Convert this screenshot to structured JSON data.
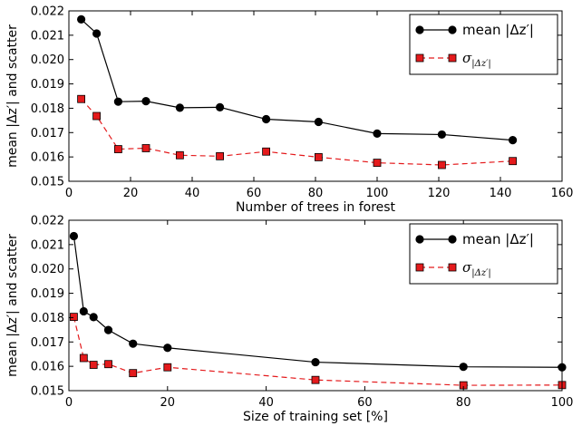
{
  "chart_data": [
    {
      "type": "line",
      "xlabel": "Number of trees in forest",
      "ylabel": "mean |Δz′| and scatter",
      "xlim": [
        0,
        160
      ],
      "ylim": [
        0.015,
        0.022
      ],
      "xticks": [
        "0",
        "20",
        "40",
        "60",
        "80",
        "100",
        "120",
        "140",
        "160"
      ],
      "yticks": [
        "0.015",
        "0.016",
        "0.017",
        "0.018",
        "0.019",
        "0.020",
        "0.021",
        "0.022"
      ],
      "grid": false,
      "legend_position": "top-right",
      "x": [
        4,
        9,
        16,
        25,
        36,
        49,
        64,
        81,
        100,
        121,
        144
      ],
      "series": [
        {
          "name": "mean |Δz′|",
          "color": "#000000",
          "line_style": "solid",
          "marker": "circle",
          "values": [
            0.02165,
            0.02107,
            0.01827,
            0.01829,
            0.01802,
            0.01804,
            0.01755,
            0.01744,
            0.01696,
            0.01692,
            0.01669
          ]
        },
        {
          "name": "σ|Δz′|",
          "color": "#e41a1c",
          "line_style": "dashed",
          "marker": "square",
          "values": [
            0.01838,
            0.01768,
            0.01632,
            0.01636,
            0.01607,
            0.01603,
            0.01622,
            0.01599,
            0.01576,
            0.01567,
            0.01583
          ]
        }
      ]
    },
    {
      "type": "line",
      "xlabel": "Size of training set [%]",
      "ylabel": "mean |Δz′| and scatter",
      "xlim": [
        0,
        100
      ],
      "ylim": [
        0.015,
        0.022
      ],
      "xticks": [
        "0",
        "20",
        "40",
        "60",
        "80",
        "100"
      ],
      "yticks": [
        "0.015",
        "0.016",
        "0.017",
        "0.018",
        "0.019",
        "0.020",
        "0.021",
        "0.022"
      ],
      "grid": false,
      "legend_position": "top-right",
      "x": [
        1,
        3,
        5,
        8,
        13,
        20,
        50,
        80,
        100
      ],
      "series": [
        {
          "name": "mean |Δz′|",
          "color": "#000000",
          "line_style": "solid",
          "marker": "circle",
          "values": [
            0.02135,
            0.01826,
            0.01802,
            0.01749,
            0.01693,
            0.01676,
            0.01617,
            0.01598,
            0.01596
          ]
        },
        {
          "name": "σ|Δz′|",
          "color": "#e41a1c",
          "line_style": "dashed",
          "marker": "square",
          "values": [
            0.01803,
            0.01634,
            0.01606,
            0.01609,
            0.01572,
            0.01596,
            0.01544,
            0.01522,
            0.01523
          ]
        }
      ]
    }
  ]
}
